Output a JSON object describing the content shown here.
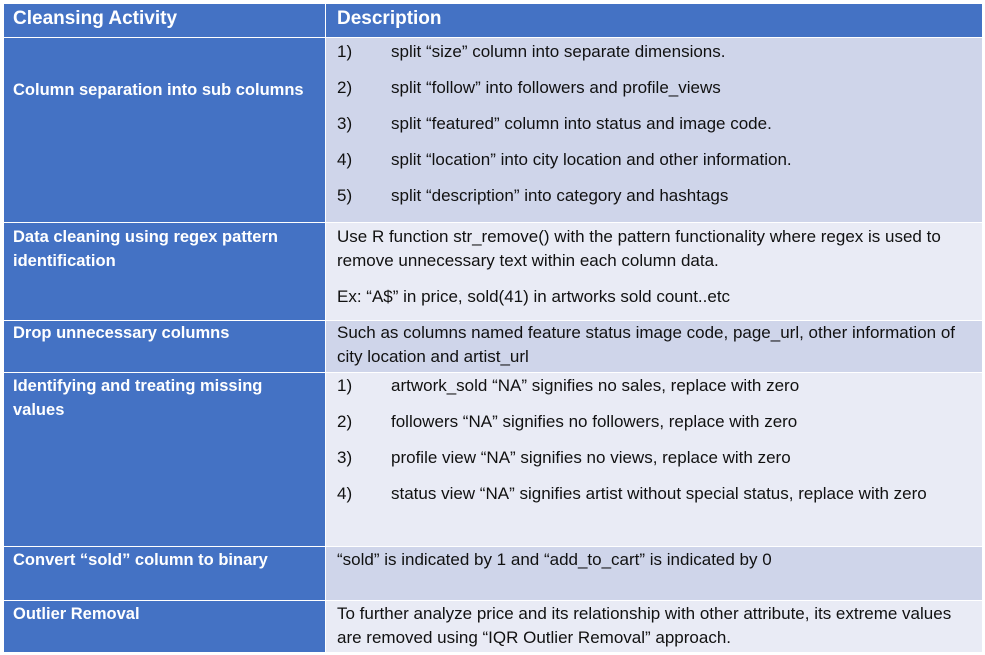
{
  "table": {
    "headers": [
      "Cleansing Activity",
      "Description"
    ],
    "rows": [
      {
        "activity": "Column separation into sub columns",
        "items": [
          {
            "num": "1)",
            "text": "split “size” column into separate dimensions."
          },
          {
            "num": "2)",
            "text": "split “follow” into followers and profile_views"
          },
          {
            "num": "3)",
            "text": "split “featured” column into status and image code."
          },
          {
            "num": "4)",
            "text": "split “location” into city location and other information."
          },
          {
            "num": "5)",
            "text": "split “description” into category and hashtags"
          }
        ]
      },
      {
        "activity": "Data cleaning using regex pattern identification",
        "paragraphs": [
          "Use R function str_remove() with the pattern functionality where regex is used to remove unnecessary text within each column data.",
          "Ex: “A$” in price, sold(41) in artworks sold count..etc"
        ]
      },
      {
        "activity": "Drop unnecessary columns",
        "paragraphs": [
          "Such as columns named feature status image code, page_url, other information of city location and artist_url"
        ]
      },
      {
        "activity": "Identifying and treating missing values",
        "items": [
          {
            "num": "1)",
            "text": "artwork_sold “NA” signifies no sales, replace with zero"
          },
          {
            "num": "2)",
            "text": "followers “NA” signifies no followers, replace with zero"
          },
          {
            "num": "3)",
            "text": "profile view “NA” signifies no views, replace with zero"
          },
          {
            "num": "4)",
            "text": "status view “NA” signifies artist without special status, replace with zero"
          }
        ]
      },
      {
        "activity": "Convert “sold” column to binary",
        "paragraphs": [
          "“sold” is indicated by 1 and “add_to_cart” is indicated by 0"
        ]
      },
      {
        "activity": "Outlier Removal",
        "paragraphs": [
          "To further analyze price and its relationship with other attribute, its extreme values are removed using “IQR Outlier Removal” approach."
        ]
      }
    ]
  }
}
